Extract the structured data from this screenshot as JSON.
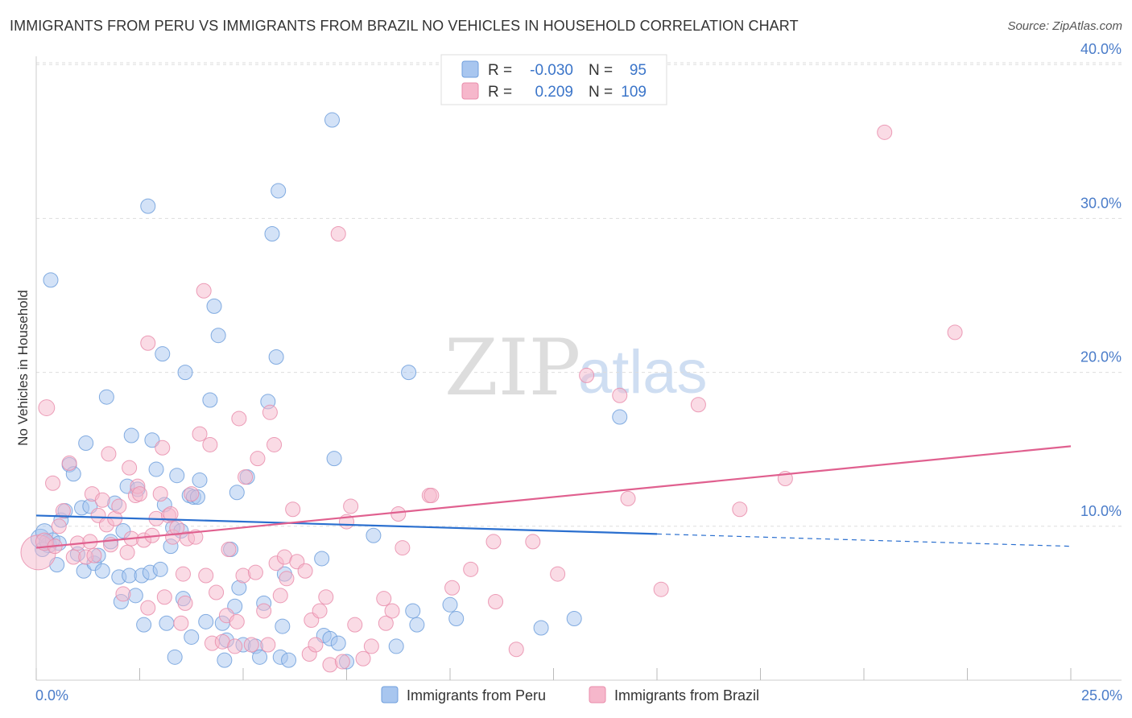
{
  "title": "IMMIGRANTS FROM PERU VS IMMIGRANTS FROM BRAZIL NO VEHICLES IN HOUSEHOLD CORRELATION CHART",
  "source": "Source: ZipAtlas.com",
  "watermark": {
    "zip": "ZIP",
    "atlas": "atlas"
  },
  "colors": {
    "peru_fill": "#a8c6ef",
    "peru_stroke": "#6f9fdc",
    "peru_line": "#2a6fcf",
    "brazil_fill": "#f6b7cb",
    "brazil_stroke": "#e98dab",
    "brazil_line": "#e0608f",
    "axis_label": "#4a7cc9",
    "grid": "#dddddd"
  },
  "legend": {
    "rows": [
      {
        "r_label": "R =",
        "r_value": "-0.030",
        "n_label": "N =",
        "n_value": "95"
      },
      {
        "r_label": "R =",
        "r_value": "0.209",
        "n_label": "N =",
        "n_value": "109"
      }
    ]
  },
  "chart_data": {
    "type": "scatter",
    "title": "IMMIGRANTS FROM PERU VS IMMIGRANTS FROM BRAZIL NO VEHICLES IN HOUSEHOLD CORRELATION CHART",
    "xlabel": "",
    "ylabel": "No Vehicles in Household",
    "xlim": [
      0,
      25
    ],
    "ylim": [
      0,
      41
    ],
    "x_tick_labels": {
      "min": "0.0%",
      "max": "25.0%"
    },
    "y_ticks": [
      10,
      20,
      30,
      40
    ],
    "y_tick_labels": [
      "10.0%",
      "20.0%",
      "30.0%",
      "40.0%"
    ],
    "series": [
      {
        "name": "Immigrants from Peru",
        "R": -0.03,
        "N": 95,
        "trend": {
          "x0": 0,
          "y0": 10.7,
          "x1": 15,
          "y1": 9.5,
          "dashed_to_x": 25,
          "dashed_to_y": 8.7
        },
        "points": [
          [
            0.1,
            9.2,
            1.3
          ],
          [
            0.2,
            9.6,
            1.2
          ],
          [
            0.3,
            8.8,
            1.1
          ],
          [
            0.4,
            9.1,
            1.0
          ],
          [
            0.15,
            8.5,
            1.0
          ],
          [
            0.35,
            26.0,
            1.0
          ],
          [
            0.5,
            7.5,
            1.0
          ],
          [
            0.6,
            10.4,
            1.0
          ],
          [
            0.7,
            11.0,
            1.0
          ],
          [
            0.8,
            14.0,
            1.0
          ],
          [
            0.9,
            13.4,
            1.0
          ],
          [
            1.0,
            8.2,
            1.0
          ],
          [
            1.1,
            11.2,
            1.0
          ],
          [
            1.15,
            7.1,
            1.0
          ],
          [
            1.2,
            15.4,
            1.0
          ],
          [
            1.3,
            11.3,
            1.0
          ],
          [
            1.4,
            7.6,
            1.0
          ],
          [
            1.5,
            8.1,
            1.0
          ],
          [
            1.6,
            7.1,
            1.0
          ],
          [
            1.7,
            18.4,
            1.0
          ],
          [
            1.8,
            9.0,
            1.0
          ],
          [
            1.9,
            11.5,
            1.0
          ],
          [
            2.0,
            6.7,
            1.0
          ],
          [
            2.05,
            5.1,
            1.0
          ],
          [
            2.1,
            9.7,
            1.0
          ],
          [
            2.2,
            12.6,
            1.0
          ],
          [
            2.25,
            6.8,
            1.0
          ],
          [
            2.3,
            15.9,
            1.0
          ],
          [
            2.4,
            5.5,
            1.0
          ],
          [
            2.45,
            12.4,
            1.0
          ],
          [
            2.55,
            6.8,
            1.0
          ],
          [
            2.6,
            3.6,
            1.0
          ],
          [
            2.7,
            30.8,
            1.0
          ],
          [
            2.75,
            7.0,
            1.0
          ],
          [
            2.8,
            15.6,
            1.0
          ],
          [
            2.9,
            13.7,
            1.0
          ],
          [
            3.0,
            7.2,
            1.0
          ],
          [
            3.05,
            21.2,
            1.0
          ],
          [
            3.1,
            11.4,
            1.0
          ],
          [
            3.15,
            3.7,
            1.0
          ],
          [
            3.25,
            8.7,
            1.0
          ],
          [
            3.3,
            9.9,
            1.0
          ],
          [
            3.35,
            1.5,
            1.0
          ],
          [
            3.4,
            13.3,
            1.0
          ],
          [
            3.5,
            9.7,
            1.0
          ],
          [
            3.55,
            5.3,
            1.0
          ],
          [
            3.6,
            20.0,
            1.0
          ],
          [
            3.7,
            12.0,
            1.0
          ],
          [
            3.75,
            2.8,
            1.0
          ],
          [
            3.8,
            11.9,
            1.0
          ],
          [
            3.9,
            11.9,
            1.0
          ],
          [
            3.95,
            13.0,
            1.0
          ],
          [
            4.1,
            3.8,
            1.0
          ],
          [
            4.2,
            18.2,
            1.0
          ],
          [
            4.3,
            24.3,
            1.0
          ],
          [
            4.4,
            22.4,
            1.0
          ],
          [
            4.5,
            3.7,
            1.0
          ],
          [
            4.55,
            1.3,
            1.0
          ],
          [
            4.6,
            2.6,
            1.0
          ],
          [
            4.7,
            8.5,
            1.0
          ],
          [
            4.8,
            4.8,
            1.0
          ],
          [
            4.85,
            12.2,
            1.0
          ],
          [
            4.9,
            6.0,
            1.0
          ],
          [
            5.0,
            2.3,
            1.0
          ],
          [
            5.1,
            13.2,
            1.0
          ],
          [
            5.3,
            2.2,
            1.0
          ],
          [
            5.4,
            1.5,
            1.0
          ],
          [
            5.5,
            5.0,
            1.0
          ],
          [
            5.6,
            18.1,
            1.0
          ],
          [
            5.7,
            29.0,
            1.0
          ],
          [
            5.8,
            21.0,
            1.0
          ],
          [
            5.85,
            31.8,
            1.0
          ],
          [
            5.9,
            1.5,
            1.0
          ],
          [
            5.95,
            3.5,
            1.0
          ],
          [
            6.0,
            6.9,
            1.0
          ],
          [
            6.1,
            1.3,
            1.0
          ],
          [
            6.9,
            7.9,
            1.0
          ],
          [
            6.95,
            2.9,
            1.0
          ],
          [
            7.1,
            2.7,
            1.0
          ],
          [
            7.15,
            36.4,
            1.0
          ],
          [
            7.2,
            14.4,
            1.0
          ],
          [
            7.3,
            2.4,
            1.0
          ],
          [
            7.5,
            1.2,
            1.0
          ],
          [
            8.15,
            9.4,
            1.0
          ],
          [
            8.7,
            2.2,
            1.0
          ],
          [
            9.0,
            20.0,
            1.0
          ],
          [
            9.1,
            4.5,
            1.0
          ],
          [
            9.2,
            3.6,
            1.0
          ],
          [
            10.0,
            4.9,
            1.0
          ],
          [
            10.15,
            4.0,
            1.0
          ],
          [
            12.2,
            3.4,
            1.0
          ],
          [
            13.0,
            4.0,
            1.0
          ],
          [
            14.1,
            17.1,
            1.0
          ],
          [
            0.25,
            9.0,
            1.0
          ],
          [
            0.55,
            8.9,
            1.0
          ]
        ]
      },
      {
        "name": "Immigrants from Brazil",
        "R": 0.209,
        "N": 109,
        "trend": {
          "x0": 0,
          "y0": 8.6,
          "x1": 25,
          "y1": 15.2
        },
        "points": [
          [
            0.05,
            8.3,
            2.4
          ],
          [
            0.2,
            9.0,
            1.2
          ],
          [
            0.25,
            17.7,
            1.1
          ],
          [
            0.4,
            12.8,
            1.0
          ],
          [
            0.45,
            8.7,
            1.0
          ],
          [
            0.55,
            10.0,
            1.0
          ],
          [
            0.65,
            11.0,
            1.0
          ],
          [
            0.8,
            14.1,
            1.0
          ],
          [
            0.9,
            8.0,
            1.0
          ],
          [
            1.0,
            8.9,
            1.0
          ],
          [
            1.2,
            8.0,
            1.0
          ],
          [
            1.3,
            9.0,
            1.0
          ],
          [
            1.35,
            12.1,
            1.0
          ],
          [
            1.4,
            8.1,
            1.0
          ],
          [
            1.5,
            10.7,
            1.0
          ],
          [
            1.6,
            11.7,
            1.0
          ],
          [
            1.7,
            10.1,
            1.0
          ],
          [
            1.75,
            14.7,
            1.0
          ],
          [
            1.8,
            8.8,
            1.0
          ],
          [
            1.9,
            10.5,
            1.0
          ],
          [
            2.0,
            11.3,
            1.0
          ],
          [
            2.1,
            5.6,
            1.0
          ],
          [
            2.2,
            8.3,
            1.0
          ],
          [
            2.25,
            13.8,
            1.0
          ],
          [
            2.3,
            9.2,
            1.0
          ],
          [
            2.4,
            12.0,
            1.0
          ],
          [
            2.45,
            12.6,
            1.0
          ],
          [
            2.5,
            12.1,
            1.0
          ],
          [
            2.6,
            9.1,
            1.0
          ],
          [
            2.7,
            4.7,
            1.0
          ],
          [
            2.7,
            21.9,
            1.0
          ],
          [
            2.8,
            9.4,
            1.0
          ],
          [
            2.9,
            10.5,
            1.0
          ],
          [
            3.0,
            12.1,
            1.0
          ],
          [
            3.05,
            15.1,
            1.0
          ],
          [
            3.1,
            5.4,
            1.0
          ],
          [
            3.2,
            10.7,
            1.0
          ],
          [
            3.25,
            10.8,
            1.0
          ],
          [
            3.3,
            9.3,
            1.0
          ],
          [
            3.4,
            9.9,
            1.0
          ],
          [
            3.5,
            3.7,
            1.0
          ],
          [
            3.55,
            6.9,
            1.0
          ],
          [
            3.6,
            5.0,
            1.0
          ],
          [
            3.65,
            9.2,
            1.0
          ],
          [
            3.75,
            12.1,
            1.0
          ],
          [
            3.85,
            9.3,
            1.0
          ],
          [
            3.95,
            16.0,
            1.0
          ],
          [
            4.05,
            25.3,
            1.0
          ],
          [
            4.1,
            6.8,
            1.0
          ],
          [
            4.2,
            15.3,
            1.0
          ],
          [
            4.25,
            2.4,
            1.0
          ],
          [
            4.35,
            5.7,
            1.0
          ],
          [
            4.5,
            2.5,
            1.0
          ],
          [
            4.6,
            4.2,
            1.0
          ],
          [
            4.65,
            8.5,
            1.0
          ],
          [
            4.8,
            2.2,
            1.0
          ],
          [
            4.85,
            3.8,
            1.0
          ],
          [
            4.9,
            17.0,
            1.0
          ],
          [
            5.0,
            6.8,
            1.0
          ],
          [
            5.05,
            13.2,
            1.0
          ],
          [
            5.2,
            2.3,
            1.0
          ],
          [
            5.3,
            7.0,
            1.0
          ],
          [
            5.35,
            14.4,
            1.0
          ],
          [
            5.5,
            4.5,
            1.0
          ],
          [
            5.6,
            2.3,
            1.0
          ],
          [
            5.65,
            17.4,
            1.0
          ],
          [
            5.75,
            15.3,
            1.0
          ],
          [
            5.8,
            7.6,
            1.0
          ],
          [
            5.9,
            5.5,
            1.0
          ],
          [
            6.0,
            8.0,
            1.0
          ],
          [
            6.05,
            6.6,
            1.0
          ],
          [
            6.2,
            11.1,
            1.0
          ],
          [
            6.3,
            7.7,
            1.0
          ],
          [
            6.5,
            7.1,
            1.0
          ],
          [
            6.6,
            1.7,
            1.0
          ],
          [
            6.65,
            3.9,
            1.0
          ],
          [
            6.75,
            2.3,
            1.0
          ],
          [
            6.85,
            4.5,
            1.0
          ],
          [
            7.0,
            5.4,
            1.0
          ],
          [
            7.1,
            1.0,
            1.0
          ],
          [
            7.3,
            29.0,
            1.0
          ],
          [
            7.4,
            1.2,
            1.0
          ],
          [
            7.5,
            10.3,
            1.0
          ],
          [
            7.6,
            11.3,
            1.0
          ],
          [
            7.7,
            3.6,
            1.0
          ],
          [
            7.9,
            1.4,
            1.0
          ],
          [
            8.1,
            2.2,
            1.0
          ],
          [
            8.4,
            5.3,
            1.0
          ],
          [
            8.45,
            3.7,
            1.0
          ],
          [
            8.6,
            4.5,
            1.0
          ],
          [
            8.75,
            10.8,
            1.0
          ],
          [
            8.85,
            8.6,
            1.0
          ],
          [
            9.5,
            12.0,
            1.0
          ],
          [
            9.55,
            12.0,
            1.0
          ],
          [
            10.05,
            6.0,
            1.0
          ],
          [
            10.5,
            7.2,
            1.0
          ],
          [
            11.05,
            9.0,
            1.0
          ],
          [
            11.1,
            5.1,
            1.0
          ],
          [
            11.6,
            2.0,
            1.0
          ],
          [
            12.0,
            9.0,
            1.0
          ],
          [
            12.6,
            6.9,
            1.0
          ],
          [
            13.3,
            19.8,
            1.0
          ],
          [
            14.1,
            18.5,
            1.0
          ],
          [
            14.3,
            11.8,
            1.0
          ],
          [
            15.1,
            5.9,
            1.0
          ],
          [
            16.0,
            17.9,
            1.0
          ],
          [
            17.0,
            11.1,
            1.0
          ],
          [
            18.1,
            13.1,
            1.0
          ],
          [
            20.5,
            35.6,
            1.0
          ],
          [
            22.2,
            22.6,
            1.0
          ]
        ]
      }
    ]
  }
}
